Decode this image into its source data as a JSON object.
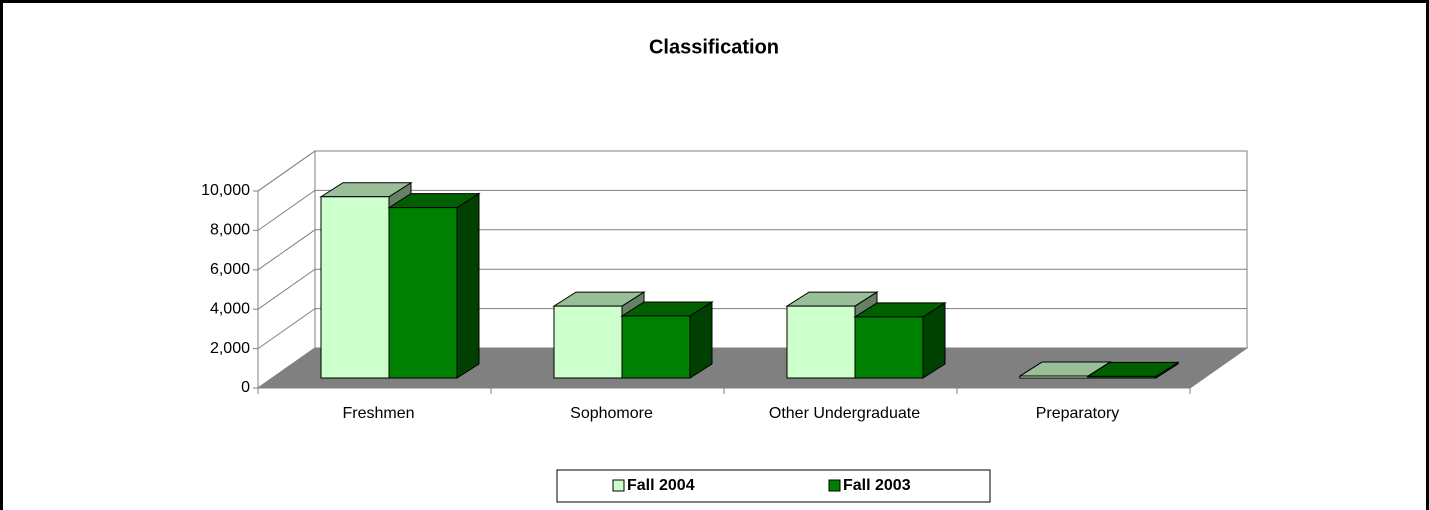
{
  "chart_data": {
    "type": "bar",
    "title": "Classification",
    "categories": [
      "Freshmen",
      "Sophomore",
      "Other Undergraduate",
      "Preparatory"
    ],
    "series": [
      {
        "name": "Fall 2004",
        "color": "#ccffcc",
        "values": [
          9200,
          3650,
          3650,
          100
        ]
      },
      {
        "name": "Fall 2003",
        "color": "#008000",
        "values": [
          8650,
          3150,
          3100,
          80
        ]
      }
    ],
    "ylim": [
      0,
      10000
    ],
    "yticks": [
      0,
      {
        "value": 2000,
        "label": "2,000"
      },
      {
        "value": 4000,
        "label": "4,000"
      },
      {
        "value": 6000,
        "label": "6,000"
      },
      {
        "value": 8000,
        "label": "8,000"
      },
      {
        "value": 10000,
        "label": "10,000"
      }
    ],
    "grid": true,
    "legend": "bottom"
  }
}
